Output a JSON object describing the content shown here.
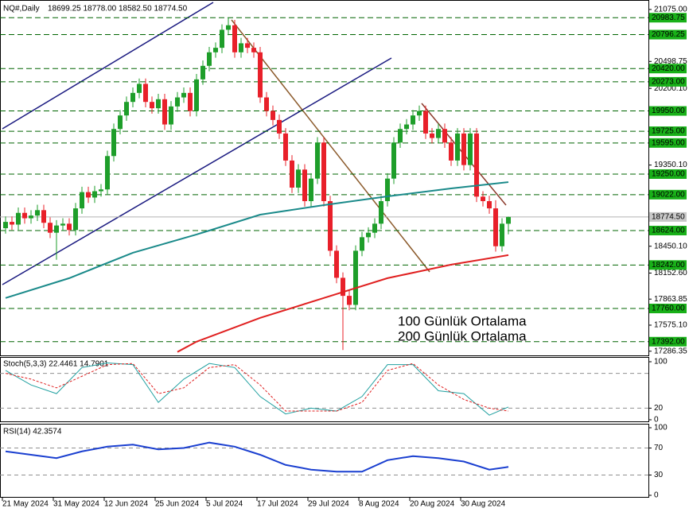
{
  "chart_data": [
    {
      "type": "candlestick",
      "title": "NQ#,Daily",
      "quote": "18699.25 18778.00 18582.50 18774.50",
      "categories": [
        "21 May 2024",
        null,
        null,
        null,
        null,
        null,
        null,
        null,
        "31 May 2024",
        null,
        null,
        null,
        null,
        null,
        null,
        null,
        "12 Jun 2024",
        null,
        null,
        null,
        null,
        null,
        null,
        null,
        "25 Jun 2024",
        null,
        null,
        null,
        null,
        null,
        null,
        null,
        "5 Jul 2024",
        null,
        null,
        null,
        null,
        null,
        null,
        null,
        "17 Jul 2024",
        null,
        null,
        null,
        null,
        null,
        null,
        null,
        "29 Jul 2024",
        null,
        null,
        null,
        null,
        null,
        null,
        null,
        "8 Aug 2024",
        null,
        null,
        null,
        null,
        null,
        null,
        null,
        "20 Aug 2024",
        null,
        null,
        null,
        null,
        null,
        null,
        null,
        "30 Aug 2024",
        null,
        null,
        null,
        null,
        null,
        null,
        null
      ],
      "open": [
        18650,
        18720,
        18690,
        18820,
        18760,
        18790,
        18850,
        18710,
        18600,
        18680,
        18700,
        18630,
        18870,
        19050,
        18990,
        19060,
        19080,
        19450,
        19750,
        19900,
        20050,
        20150,
        20250,
        20050,
        19980,
        20080,
        19800,
        20000,
        20100,
        20150,
        19950,
        20300,
        20450,
        20600,
        20650,
        20850,
        20900,
        20600,
        20700,
        20650,
        20600,
        20100,
        19950,
        19850,
        19700,
        19400,
        19100,
        19300,
        18950,
        19200,
        19600,
        18950,
        18400,
        18100,
        17900,
        17800,
        18400,
        18550,
        18600,
        18700,
        18950,
        19200,
        19600,
        19750,
        19800,
        19900,
        19950,
        19700,
        19650,
        19750,
        19600,
        19400,
        19700,
        19350,
        19700,
        19000,
        18950,
        18870,
        18450,
        18699.25
      ],
      "high": [
        18780,
        18780,
        18880,
        18880,
        18850,
        18910,
        18910,
        18770,
        18740,
        18760,
        18760,
        18930,
        19110,
        19110,
        19120,
        19140,
        19510,
        19810,
        19960,
        20110,
        20210,
        20310,
        20310,
        20110,
        20140,
        20140,
        20060,
        20160,
        20210,
        20210,
        20360,
        20510,
        20660,
        20710,
        20910,
        20983,
        20960,
        20760,
        20760,
        20710,
        20660,
        20160,
        20010,
        19910,
        19760,
        19460,
        19360,
        19360,
        19260,
        19660,
        19660,
        19010,
        18460,
        18160,
        17960,
        18460,
        18610,
        18660,
        18760,
        19010,
        19260,
        19660,
        19810,
        19860,
        19960,
        20010,
        20010,
        19760,
        19810,
        19810,
        19660,
        19760,
        19760,
        19760,
        19760,
        19060,
        19010,
        18960,
        18760,
        18778
      ],
      "low": [
        18590,
        18630,
        18630,
        18700,
        18700,
        18730,
        18650,
        18540,
        18300,
        18620,
        18570,
        18570,
        18810,
        18930,
        18930,
        19000,
        19020,
        19390,
        19690,
        19840,
        19990,
        20090,
        19990,
        19920,
        19920,
        19740,
        19740,
        19940,
        20040,
        19890,
        19890,
        20240,
        20390,
        20540,
        20590,
        20790,
        20540,
        20540,
        20590,
        20540,
        20040,
        19890,
        19790,
        19640,
        19340,
        19040,
        19040,
        18890,
        18890,
        19140,
        18890,
        18340,
        18040,
        17300,
        17740,
        17740,
        18340,
        18490,
        18540,
        18640,
        18890,
        19140,
        19540,
        19690,
        19740,
        19840,
        19640,
        19590,
        19590,
        19540,
        19340,
        19340,
        19290,
        19290,
        18940,
        18890,
        18810,
        18390,
        18390,
        18582.5
      ],
      "close": [
        18720,
        18690,
        18820,
        18760,
        18790,
        18850,
        18710,
        18600,
        18680,
        18700,
        18630,
        18870,
        19050,
        18990,
        19060,
        19080,
        19450,
        19750,
        19900,
        20050,
        20150,
        20250,
        20050,
        19980,
        20080,
        19800,
        20000,
        20100,
        20150,
        19950,
        20300,
        20450,
        20600,
        20650,
        20850,
        20900,
        20600,
        20700,
        20650,
        20600,
        20100,
        19950,
        19850,
        19700,
        19400,
        19100,
        19300,
        18950,
        19200,
        19600,
        18950,
        18400,
        18100,
        17900,
        17800,
        18400,
        18550,
        18600,
        18700,
        18950,
        19200,
        19600,
        19750,
        19800,
        19900,
        19950,
        19700,
        19650,
        19750,
        19600,
        19400,
        19700,
        19350,
        19700,
        19000,
        18950,
        18870,
        18450,
        18700,
        18774.5
      ],
      "up_color": "#1e9e2a",
      "down_color": "#e8202a",
      "ylim": [
        17240,
        21180
      ],
      "yticks": [
        {
          "value": 21075,
          "label": "21075.00"
        },
        {
          "value": 20498.75,
          "label": "20498.75"
        },
        {
          "value": 20200.1,
          "label": "20200.10"
        },
        {
          "value": 19350.1,
          "label": "19350.10"
        },
        {
          "value": 18450.1,
          "label": "18450.10"
        },
        {
          "value": 18152.6,
          "label": "18152.60"
        },
        {
          "value": 17863.85,
          "label": "17863.85"
        },
        {
          "value": 17575.1,
          "label": "17575.10"
        },
        {
          "value": 17286.35,
          "label": "17286.35"
        }
      ],
      "levels": [
        {
          "value": 20983.75,
          "label": "20983.75"
        },
        {
          "value": 20796.25,
          "label": "20796.25"
        },
        {
          "value": 20420,
          "label": "20420.00"
        },
        {
          "value": 20273,
          "label": "20273.00"
        },
        {
          "value": 19950,
          "label": "19950.00"
        },
        {
          "value": 19725,
          "label": "19725.00"
        },
        {
          "value": 19595,
          "label": "19595.00"
        },
        {
          "value": 19250,
          "label": "19250.00"
        },
        {
          "value": 19022,
          "label": "19022.00"
        },
        {
          "value": 18624,
          "label": "18624.00"
        },
        {
          "value": 18242,
          "label": "18242.00"
        },
        {
          "value": 17760,
          "label": "17760.00"
        },
        {
          "value": 17392,
          "label": "17392.00"
        }
      ],
      "level_color": "#006400",
      "current": {
        "value": 18774.5,
        "label": "18774.50"
      },
      "series": [
        {
          "name": "100 Günlük Ortalama",
          "color": "#1a8a8a",
          "x": [
            0,
            10,
            20,
            30,
            40,
            50,
            60,
            70,
            79
          ],
          "values": [
            17876,
            18096,
            18378,
            18580,
            18800,
            18906,
            19003,
            19091,
            19161
          ]
        },
        {
          "name": "200 Günlük Ortalama",
          "color": "#e02020",
          "x": [
            27,
            30,
            40,
            50,
            60,
            70,
            79
          ],
          "values": [
            17278,
            17392,
            17656,
            17876,
            18096,
            18246,
            18352
          ]
        }
      ]
    },
    {
      "type": "line",
      "title": "Stoch(5,3,3) 22.4461 14.7901",
      "ylim": [
        0,
        100
      ],
      "yticks": [
        0,
        20,
        100
      ],
      "levels": [
        20,
        80
      ],
      "x": [
        0,
        4,
        8,
        12,
        16,
        20,
        24,
        28,
        32,
        36,
        40,
        44,
        48,
        52,
        56,
        60,
        64,
        68,
        72,
        76,
        79
      ],
      "series": [
        {
          "color": "#20a0a0",
          "values": [
            85,
            60,
            45,
            90,
            98,
            95,
            30,
            70,
            97,
            90,
            40,
            10,
            20,
            15,
            40,
            95,
            95,
            50,
            45,
            8,
            22
          ]
        },
        {
          "color": "#e02020",
          "values": [
            80,
            70,
            55,
            75,
            95,
            97,
            45,
            55,
            90,
            95,
            60,
            15,
            15,
            15,
            30,
            85,
            97,
            60,
            35,
            20,
            15
          ]
        }
      ]
    },
    {
      "type": "line",
      "title": "RSI(14) 42.3574",
      "ylim": [
        0,
        100
      ],
      "yticks": [
        0,
        30,
        70,
        100
      ],
      "levels": [
        30,
        70
      ],
      "x": [
        0,
        4,
        8,
        12,
        16,
        20,
        24,
        28,
        32,
        36,
        40,
        44,
        48,
        52,
        56,
        60,
        64,
        68,
        72,
        76,
        79
      ],
      "series": [
        {
          "color": "#1a3fd0",
          "values": [
            65,
            60,
            55,
            65,
            72,
            75,
            68,
            70,
            78,
            72,
            60,
            45,
            38,
            35,
            35,
            52,
            58,
            55,
            50,
            38,
            42
          ]
        }
      ]
    }
  ]
}
